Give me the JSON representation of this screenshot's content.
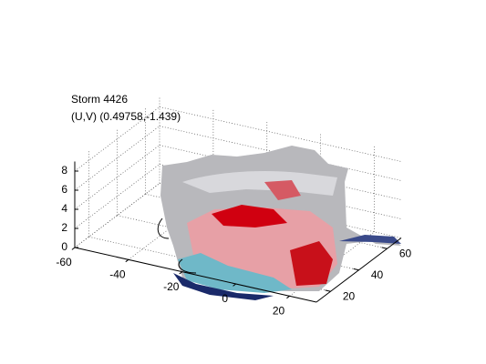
{
  "chart_data": {
    "type": "surface3d",
    "title": "Storm 4426",
    "subtitle": "(U,V) (0.49758,-1.439)",
    "xlim": [
      -60,
      30
    ],
    "xticks": [
      -60,
      -40,
      -20,
      0,
      20
    ],
    "ylim": [
      10,
      70
    ],
    "yticks": [
      20,
      40,
      60
    ],
    "zlim": [
      0,
      9
    ],
    "zticks": [
      0,
      2,
      4,
      6,
      8
    ],
    "grid": true
  }
}
